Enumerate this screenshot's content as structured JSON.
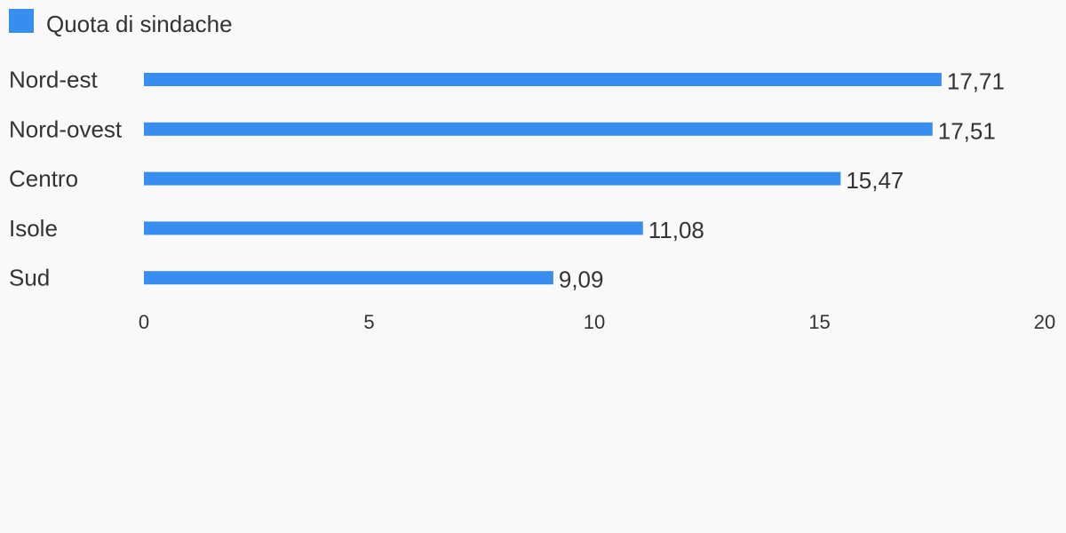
{
  "chart_data": {
    "type": "bar",
    "orientation": "horizontal",
    "categories": [
      "Nord-est",
      "Nord-ovest",
      "Centro",
      "Isole",
      "Sud"
    ],
    "series": [
      {
        "name": "Quota di sindache",
        "values": [
          17.71,
          17.51,
          15.47,
          11.08,
          9.09
        ],
        "value_labels": [
          "17,71",
          "17,51",
          "15,47",
          "11,08",
          "9,09"
        ],
        "color": "#388ef0"
      }
    ],
    "xlim": [
      0,
      20
    ],
    "x_ticks": [
      0,
      5,
      10,
      15,
      20
    ],
    "x_tick_labels": [
      "0",
      "5",
      "10",
      "15",
      "20"
    ],
    "legend": "top-left",
    "grid": false
  }
}
